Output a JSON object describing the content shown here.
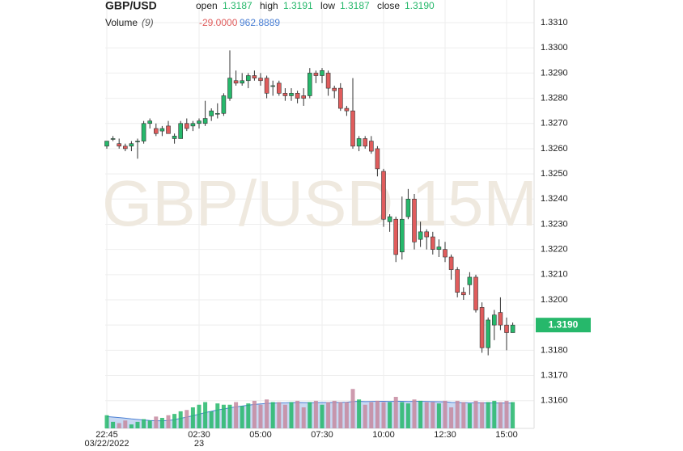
{
  "chart_data": {
    "type": "candlestick",
    "title": "GBP/USD",
    "watermark": "GBP/USD 15M",
    "ohlc_legend": [
      {
        "label": "open",
        "value": "1.3187"
      },
      {
        "label": "high",
        "value": "1.3191"
      },
      {
        "label": "low",
        "value": "1.3187"
      },
      {
        "label": "close",
        "value": "1.3190"
      }
    ],
    "volume_title": "Volume",
    "volume_param": "(9)",
    "volume_change": "-29.0000",
    "volume_ma_last": "962.8889",
    "x": [
      "22:45",
      null,
      null,
      null,
      null,
      null,
      null,
      null,
      null,
      null,
      null,
      null,
      null,
      null,
      null,
      "02:30",
      null,
      null,
      null,
      null,
      null,
      null,
      null,
      null,
      null,
      "05:00",
      null,
      null,
      null,
      null,
      null,
      null,
      null,
      null,
      null,
      "07:30",
      null,
      null,
      null,
      null,
      null,
      null,
      null,
      null,
      null,
      "10:00",
      null,
      null,
      null,
      null,
      null,
      null,
      null,
      null,
      null,
      "12:30",
      null,
      null,
      null,
      null,
      null,
      null,
      null,
      null,
      null,
      "15:00",
      null
    ],
    "x_sublabels": [
      "03/22/2022",
      null,
      null,
      null,
      null,
      null,
      null,
      null,
      null,
      null,
      null,
      null,
      null,
      null,
      null,
      "23",
      null,
      null,
      null,
      null,
      null,
      null,
      null,
      null,
      null,
      null,
      null,
      null,
      null,
      null,
      null,
      null,
      null,
      null,
      null,
      null,
      null,
      null,
      null,
      null,
      null,
      null,
      null,
      null,
      null,
      null,
      null,
      null,
      null,
      null,
      null,
      null,
      null,
      null,
      null,
      null,
      null,
      null,
      null,
      null,
      null,
      null,
      null,
      null,
      null,
      null,
      null
    ],
    "ohlc": {
      "open": [
        1.3261,
        1.3264,
        1.3262,
        1.3261,
        1.3261,
        1.3263,
        1.3263,
        1.327,
        1.3268,
        1.3267,
        1.3269,
        1.3264,
        1.3264,
        1.327,
        1.3269,
        1.327,
        1.327,
        1.3273,
        1.3274,
        1.3274,
        1.328,
        1.3287,
        1.3286,
        1.3287,
        1.3289,
        1.3288,
        1.3288,
        1.3285,
        1.3286,
        1.3282,
        1.3281,
        1.3282,
        1.3281,
        1.3281,
        1.329,
        1.3289,
        1.329,
        1.3284,
        1.3284,
        1.3276,
        1.3275,
        1.3261,
        1.3264,
        1.3263,
        1.326,
        1.3251,
        1.3231,
        1.3232,
        1.3219,
        1.3233,
        1.324,
        1.3224,
        1.3227,
        1.3225,
        1.322,
        1.322,
        1.3217,
        1.3212,
        1.3203,
        1.3206,
        1.3209,
        1.3197,
        1.3181,
        1.319,
        1.3195,
        1.319,
        1.3187
      ],
      "high": [
        1.3263,
        1.3265,
        1.3264,
        1.3262,
        1.3263,
        1.3264,
        1.3271,
        1.3272,
        1.327,
        1.3269,
        1.3271,
        1.3266,
        1.3271,
        1.3272,
        1.3271,
        1.3272,
        1.3279,
        1.3276,
        1.3278,
        1.3282,
        1.3299,
        1.3291,
        1.329,
        1.329,
        1.3291,
        1.329,
        1.3289,
        1.3287,
        1.3287,
        1.3284,
        1.3284,
        1.3283,
        1.3284,
        1.3292,
        1.3291,
        1.3292,
        1.3291,
        1.3285,
        1.3286,
        1.3277,
        1.3288,
        1.3265,
        1.3265,
        1.3265,
        1.3261,
        1.3252,
        1.3234,
        1.3233,
        1.3241,
        1.3244,
        1.3242,
        1.3231,
        1.3228,
        1.3227,
        1.3224,
        1.3223,
        1.3218,
        1.3213,
        1.3205,
        1.3211,
        1.321,
        1.3199,
        1.3193,
        1.3196,
        1.3201,
        1.3193,
        1.3191
      ],
      "low": [
        1.326,
        1.3263,
        1.326,
        1.3259,
        1.3259,
        1.3256,
        1.3262,
        1.3268,
        1.3265,
        1.3265,
        1.3266,
        1.3262,
        1.3264,
        1.3267,
        1.3267,
        1.3268,
        1.3269,
        1.3271,
        1.3272,
        1.3273,
        1.3279,
        1.3285,
        1.3285,
        1.3284,
        1.3287,
        1.3285,
        1.328,
        1.3281,
        1.3281,
        1.3279,
        1.3279,
        1.3278,
        1.3277,
        1.328,
        1.3286,
        1.3286,
        1.3281,
        1.328,
        1.3275,
        1.3273,
        1.326,
        1.3259,
        1.326,
        1.3258,
        1.3249,
        1.3229,
        1.3227,
        1.3215,
        1.3216,
        1.3232,
        1.322,
        1.3221,
        1.322,
        1.3218,
        1.3217,
        1.3215,
        1.3208,
        1.3201,
        1.32,
        1.3202,
        1.3195,
        1.3179,
        1.3178,
        1.3184,
        1.3188,
        1.318,
        1.3187
      ],
      "close": [
        1.3263,
        1.3264,
        1.3261,
        1.326,
        1.3262,
        1.3263,
        1.327,
        1.3271,
        1.3266,
        1.3268,
        1.3266,
        1.3265,
        1.327,
        1.3268,
        1.327,
        1.3271,
        1.3272,
        1.3275,
        1.3274,
        1.3281,
        1.3288,
        1.3286,
        1.3287,
        1.3289,
        1.3288,
        1.3287,
        1.3282,
        1.3285,
        1.3282,
        1.3281,
        1.3282,
        1.328,
        1.328,
        1.329,
        1.3289,
        1.3291,
        1.3284,
        1.3283,
        1.3276,
        1.3275,
        1.3261,
        1.3264,
        1.3261,
        1.3259,
        1.3252,
        1.3232,
        1.3233,
        1.3218,
        1.3232,
        1.324,
        1.3223,
        1.3227,
        1.3225,
        1.322,
        1.3221,
        1.3217,
        1.3212,
        1.3203,
        1.3202,
        1.3209,
        1.3196,
        1.3181,
        1.3192,
        1.3194,
        1.319,
        1.3187,
        1.319
      ]
    },
    "up_color": "#26b86b",
    "down_color": "#e05c5c",
    "volume": [
      500,
      250,
      200,
      300,
      150,
      250,
      350,
      300,
      450,
      400,
      500,
      550,
      650,
      700,
      800,
      900,
      1000,
      650,
      950,
      900,
      900,
      1000,
      850,
      950,
      1050,
      900,
      1100,
      1000,
      1000,
      900,
      1000,
      1050,
      800,
      1000,
      1050,
      900,
      1000,
      1050,
      1000,
      1000,
      1500,
      1100,
      900,
      1000,
      1050,
      1000,
      1000,
      1200,
      1000,
      950,
      1100,
      1050,
      1000,
      1000,
      950,
      1050,
      800,
      1050,
      1000,
      950,
      1050,
      1000,
      1000,
      1050,
      1000,
      1050,
      1000
    ],
    "volume_ma": [
      450,
      430,
      410,
      390,
      360,
      340,
      320,
      300,
      290,
      290,
      300,
      330,
      380,
      430,
      480,
      540,
      600,
      650,
      700,
      740,
      780,
      820,
      850,
      880,
      910,
      930,
      950,
      960,
      970,
      975,
      980,
      985,
      980,
      975,
      980,
      985,
      985,
      990,
      990,
      995,
      1020,
      1030,
      1020,
      1025,
      1030,
      1030,
      1025,
      1035,
      1030,
      1025,
      1030,
      1030,
      1025,
      1020,
      1015,
      1010,
      990,
      985,
      980,
      975,
      975,
      970,
      970,
      968,
      965,
      964,
      962.8889
    ],
    "vlim": [
      0,
      1600
    ],
    "volume_ma_color": "#4a7fd4",
    "ylim": [
      1.3149,
      1.3319
    ],
    "yticks": [
      {
        "value": 1.316,
        "label": "1.3160"
      },
      {
        "value": 1.317,
        "label": "1.3170"
      },
      {
        "value": 1.318,
        "label": "1.3180"
      },
      {
        "value": 1.319,
        "label": "1.3190"
      },
      {
        "value": 1.32,
        "label": "1.3200"
      },
      {
        "value": 1.321,
        "label": "1.3210"
      },
      {
        "value": 1.322,
        "label": "1.3220"
      },
      {
        "value": 1.323,
        "label": "1.3230"
      },
      {
        "value": 1.324,
        "label": "1.3240"
      },
      {
        "value": 1.325,
        "label": "1.3250"
      },
      {
        "value": 1.326,
        "label": "1.3260"
      },
      {
        "value": 1.327,
        "label": "1.3270"
      },
      {
        "value": 1.328,
        "label": "1.3280"
      },
      {
        "value": 1.329,
        "label": "1.3290"
      },
      {
        "value": 1.33,
        "label": "1.3300"
      },
      {
        "value": 1.331,
        "label": "1.3310"
      }
    ],
    "last_price": {
      "value": 1.319,
      "label": "1.3190"
    },
    "grid": true
  }
}
